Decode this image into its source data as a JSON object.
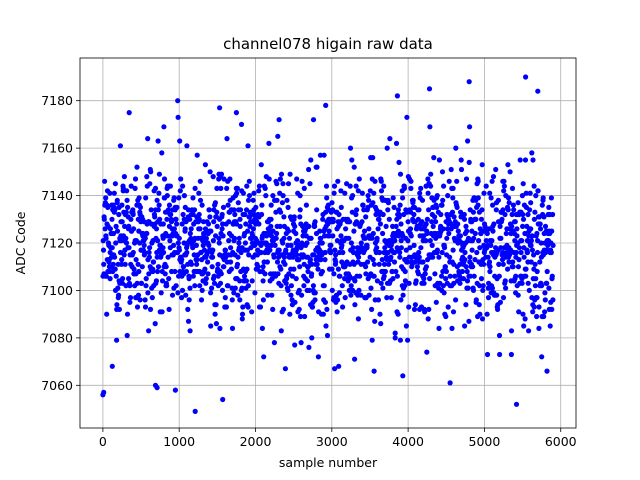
{
  "chart_data": {
    "type": "scatter",
    "title": "channel078 higain raw data",
    "xlabel": "sample number",
    "ylabel": "ADC Code",
    "xlim": [
      -300,
      6200
    ],
    "ylim": [
      7042,
      7198
    ],
    "xticks": [
      0,
      1000,
      2000,
      3000,
      4000,
      5000,
      6000
    ],
    "yticks": [
      7060,
      7080,
      7100,
      7120,
      7140,
      7160,
      7180
    ],
    "grid": true,
    "marker_color": "#0000ff",
    "n_samples": 5900,
    "distribution": {
      "mean": 7119,
      "core_range": [
        7095,
        7145
      ],
      "typical_min": 7065,
      "typical_max": 7175
    },
    "notable_points": [
      {
        "x": 0,
        "y": 7056
      },
      {
        "x": 10,
        "y": 7057
      },
      {
        "x": 980,
        "y": 7180
      },
      {
        "x": 1210,
        "y": 7049
      },
      {
        "x": 1570,
        "y": 7054
      },
      {
        "x": 1530,
        "y": 7177
      },
      {
        "x": 1750,
        "y": 7175
      },
      {
        "x": 2920,
        "y": 7178
      },
      {
        "x": 3860,
        "y": 7182
      },
      {
        "x": 3930,
        "y": 7064
      },
      {
        "x": 4280,
        "y": 7185
      },
      {
        "x": 4550,
        "y": 7061
      },
      {
        "x": 4800,
        "y": 7188
      },
      {
        "x": 5420,
        "y": 7052
      },
      {
        "x": 5540,
        "y": 7190
      },
      {
        "x": 5700,
        "y": 7184
      },
      {
        "x": 5820,
        "y": 7066
      },
      {
        "x": 690,
        "y": 7060
      },
      {
        "x": 710,
        "y": 7059
      },
      {
        "x": 950,
        "y": 7058
      }
    ]
  }
}
